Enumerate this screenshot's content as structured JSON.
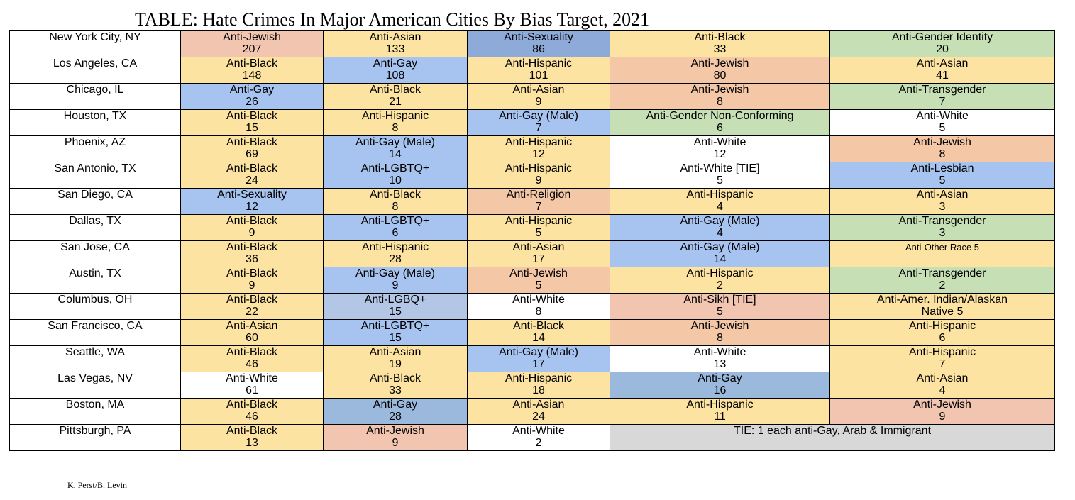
{
  "title": "TABLE: Hate Crimes In Major American Cities By Bias Target, 2021",
  "credit": "K. Perst/B. Levin",
  "colors": {
    "yellow": "#fde3a1",
    "blue": "#a7c3ef",
    "steel": "#9ab9dd",
    "darkblue": "#8eaad9",
    "peach": "#f4c7a6",
    "pink": "#f1c5b0",
    "green": "#c6dfb4",
    "gray": "#d8d8d8",
    "lavender": "#b4c6e6",
    "white": "#ffffff"
  },
  "rows": [
    {
      "city": "New York City, NY",
      "cells": [
        {
          "label": "Anti-Jewish",
          "value": "207",
          "color": "pink"
        },
        {
          "label": "Anti-Asian",
          "value": "133",
          "color": "yellow"
        },
        {
          "label": "Anti-Sexuality",
          "value": "86",
          "color": "darkblue"
        },
        {
          "label": "Anti-Black",
          "value": "33",
          "color": "yellow"
        },
        {
          "label": "Anti-Gender Identity",
          "value": "20",
          "color": "green"
        }
      ]
    },
    {
      "city": "Los Angeles, CA",
      "cells": [
        {
          "label": "Anti-Black",
          "value": "148",
          "color": "yellow"
        },
        {
          "label": "Anti-Gay",
          "value": "108",
          "color": "blue"
        },
        {
          "label": "Anti-Hispanic",
          "value": "101",
          "color": "yellow"
        },
        {
          "label": "Anti-Jewish",
          "value": "80",
          "color": "peach"
        },
        {
          "label": "Anti-Asian",
          "value": "41",
          "color": "yellow"
        }
      ]
    },
    {
      "city": "Chicago, IL",
      "cells": [
        {
          "label": "Anti-Gay",
          "value": "26",
          "color": "blue"
        },
        {
          "label": "Anti-Black",
          "value": "21",
          "color": "yellow"
        },
        {
          "label": "Anti-Asian",
          "value": "9",
          "color": "yellow"
        },
        {
          "label": "Anti-Jewish",
          "value": "8",
          "color": "peach"
        },
        {
          "label": "Anti-Transgender",
          "value": "7",
          "color": "green"
        }
      ]
    },
    {
      "city": "Houston, TX",
      "cells": [
        {
          "label": "Anti-Black",
          "value": "15",
          "color": "yellow"
        },
        {
          "label": "Anti-Hispanic",
          "value": "8",
          "color": "yellow"
        },
        {
          "label": "Anti-Gay (Male)",
          "value": "7",
          "color": "blue"
        },
        {
          "label": "Anti-Gender Non-Conforming",
          "value": "6",
          "color": "green"
        },
        {
          "label": "Anti-White",
          "value": "5",
          "color": "white"
        }
      ]
    },
    {
      "city": "Phoenix, AZ",
      "cells": [
        {
          "label": "Anti-Black",
          "value": "69",
          "color": "yellow"
        },
        {
          "label": "Anti-Gay (Male)",
          "value": "14",
          "color": "blue"
        },
        {
          "label": "Anti-Hispanic",
          "value": "12",
          "color": "yellow"
        },
        {
          "label": "Anti-White",
          "value": "12",
          "color": "white"
        },
        {
          "label": "Anti-Jewish",
          "value": "8",
          "color": "peach"
        }
      ]
    },
    {
      "city": "San Antonio, TX",
      "cells": [
        {
          "label": "Anti-Black",
          "value": "24",
          "color": "yellow"
        },
        {
          "label": "Anti-LGBTQ+",
          "value": "10",
          "color": "blue"
        },
        {
          "label": "Anti-Hispanic",
          "value": "9",
          "color": "yellow"
        },
        {
          "label": "Anti-White [TIE]",
          "value": "5",
          "color": "white"
        },
        {
          "label": "Anti-Lesbian",
          "value": "5",
          "color": "blue"
        }
      ]
    },
    {
      "city": "San Diego, CA",
      "cells": [
        {
          "label": "Anti-Sexuality",
          "value": "12",
          "color": "blue"
        },
        {
          "label": "Anti-Black",
          "value": "8",
          "color": "yellow"
        },
        {
          "label": "Anti-Religion",
          "value": "7",
          "color": "peach"
        },
        {
          "label": "Anti-Hispanic",
          "value": "4",
          "color": "yellow"
        },
        {
          "label": "Anti-Asian",
          "value": "3",
          "color": "yellow"
        }
      ]
    },
    {
      "city": "Dallas, TX",
      "cells": [
        {
          "label": "Anti-Black",
          "value": "9",
          "color": "yellow"
        },
        {
          "label": "Anti-LGBTQ+",
          "value": "6",
          "color": "blue"
        },
        {
          "label": "Anti-Hispanic",
          "value": "5",
          "color": "yellow"
        },
        {
          "label": "Anti-Gay (Male)",
          "value": "4",
          "color": "blue"
        },
        {
          "label": "Anti-Transgender",
          "value": "3",
          "color": "green"
        }
      ]
    },
    {
      "city": "San Jose, CA",
      "cells": [
        {
          "label": "Anti-Black",
          "value": "36",
          "color": "yellow"
        },
        {
          "label": "Anti-Hispanic",
          "value": "28",
          "color": "yellow"
        },
        {
          "label": "Anti-Asian",
          "value": "17",
          "color": "yellow"
        },
        {
          "label": "Anti-Gay (Male)",
          "value": "14",
          "color": "blue"
        },
        {
          "label": "Anti-Other Race     5",
          "value": "",
          "color": "yellow",
          "small": true
        }
      ]
    },
    {
      "city": "Austin, TX",
      "cells": [
        {
          "label": "Anti-Black",
          "value": "9",
          "color": "yellow"
        },
        {
          "label": "Anti-Gay (Male)",
          "value": "9",
          "color": "blue"
        },
        {
          "label": "Anti-Jewish",
          "value": "5",
          "color": "peach"
        },
        {
          "label": "Anti-Hispanic",
          "value": "2",
          "color": "yellow"
        },
        {
          "label": "Anti-Transgender",
          "value": "2",
          "color": "green"
        }
      ]
    },
    {
      "city": "Columbus, OH",
      "cells": [
        {
          "label": "Anti-Black",
          "value": "22",
          "color": "yellow"
        },
        {
          "label": "Anti-LGBQ+",
          "value": "15",
          "color": "lavender"
        },
        {
          "label": "Anti-White",
          "value": "8",
          "color": "white"
        },
        {
          "label": "Anti-Sikh [TIE]",
          "value": "5",
          "color": "pink"
        },
        {
          "label": "Anti-Amer. Indian/Alaskan",
          "value": "Native 5",
          "color": "yellow"
        }
      ]
    },
    {
      "city": "San Francisco, CA",
      "cells": [
        {
          "label": "Anti-Asian",
          "value": "60",
          "color": "yellow"
        },
        {
          "label": "Anti-LGBTQ+",
          "value": "15",
          "color": "blue"
        },
        {
          "label": "Anti-Black",
          "value": "14",
          "color": "yellow"
        },
        {
          "label": "Anti-Jewish",
          "value": "8",
          "color": "peach"
        },
        {
          "label": "Anti-Hispanic",
          "value": "6",
          "color": "yellow"
        }
      ]
    },
    {
      "city": "Seattle, WA",
      "cells": [
        {
          "label": "Anti-Black",
          "value": "46",
          "color": "yellow"
        },
        {
          "label": "Anti-Asian",
          "value": "19",
          "color": "yellow"
        },
        {
          "label": "Anti-Gay (Male)",
          "value": "17",
          "color": "blue"
        },
        {
          "label": "Anti-White",
          "value": "13",
          "color": "white"
        },
        {
          "label": "Anti-Hispanic",
          "value": "7",
          "color": "yellow"
        }
      ]
    },
    {
      "city": "Las Vegas, NV",
      "cells": [
        {
          "label": "Anti-White",
          "value": "61",
          "color": "white"
        },
        {
          "label": "Anti-Black",
          "value": "33",
          "color": "yellow"
        },
        {
          "label": "Anti-Hispanic",
          "value": "18",
          "color": "yellow"
        },
        {
          "label": "Anti-Gay",
          "value": "16",
          "color": "steel"
        },
        {
          "label": "Anti-Asian",
          "value": "4",
          "color": "yellow"
        }
      ]
    },
    {
      "city": "Boston, MA",
      "cells": [
        {
          "label": "Anti-Black",
          "value": "46",
          "color": "yellow"
        },
        {
          "label": "Anti-Gay",
          "value": "28",
          "color": "steel"
        },
        {
          "label": "Anti-Asian",
          "value": "24",
          "color": "yellow"
        },
        {
          "label": "Anti-Hispanic",
          "value": "11",
          "color": "yellow"
        },
        {
          "label": "Anti-Jewish",
          "value": "9",
          "color": "pink"
        }
      ]
    },
    {
      "city": "Pittsburgh, PA",
      "cells": [
        {
          "label": "Anti-Black",
          "value": "13",
          "color": "yellow"
        },
        {
          "label": "Anti-Jewish",
          "value": "9",
          "color": "pink"
        },
        {
          "label": "Anti-White",
          "value": "2",
          "color": "white"
        },
        {
          "label": "TIE: 1 each anti-Gay, Arab & Immigrant",
          "value": "",
          "color": "gray",
          "span": 2
        }
      ]
    }
  ]
}
